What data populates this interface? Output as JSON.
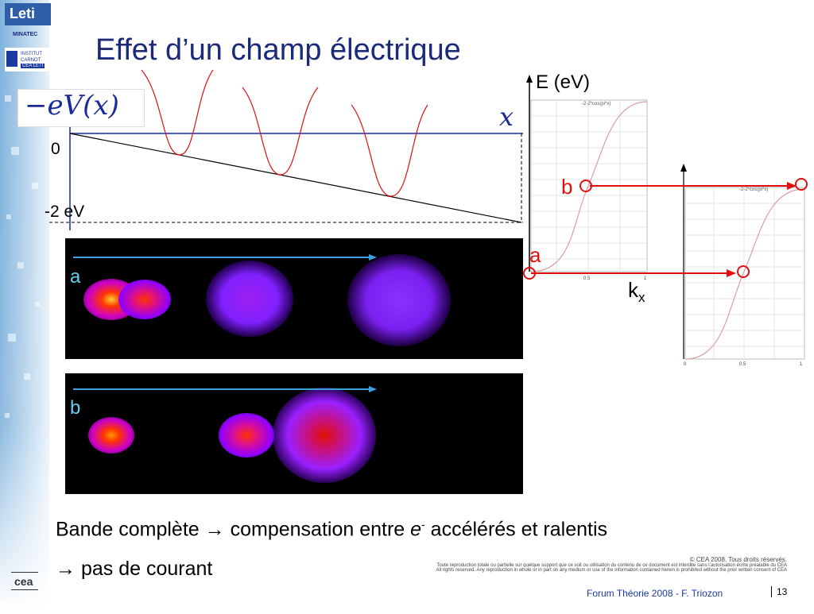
{
  "title": "Effet d’un champ électrique",
  "logos": {
    "leti": "Leti",
    "minatec": "MINATEC",
    "carnot": "INSTITUT CARNOT",
    "cea_leti": "CEA LETI",
    "cea": "cea"
  },
  "potential_plot": {
    "function_label": "−eV(x)",
    "x_label": "x",
    "tick_zero": "0",
    "tick_bottom": "-2 eV"
  },
  "band_plot": {
    "y_label": "E (eV)",
    "x_label": "k",
    "x_label_sub": "x",
    "point_a": "a",
    "point_b": "b",
    "legend_left": "-2-2*cos(pi*x)",
    "legend_right": "-2-2*cos(pi*x)",
    "tick_mid": "0.5",
    "tick_end": "1",
    "tick_zero": "0"
  },
  "panels": {
    "a_label": "a",
    "b_label": "b"
  },
  "conclusion": {
    "line1_part1": "Bande complète",
    "arrow": "→",
    "line1_part2": "compensation entre",
    "electron": "e",
    "electron_sup": "-",
    "line1_part3": "accélérés et ralentis",
    "line2": "pas de courant"
  },
  "legal": {
    "copyright": "© CEA 2008. Tous droits réservés.",
    "fr": "Toute reproduction totale ou partielle sur quelque support que ce soit ou utilisation du contenu de ce document est interdite sans l’autorisation écrite préalable du CEA",
    "en": "All rights reserved. Any reproduction in whole or in part on any medium or use of the information contained herein is prohibited without the prior written consent of CEA"
  },
  "footer": {
    "text": "Forum Théorie 2008 - F. Triozon",
    "page": "13"
  },
  "colors": {
    "title": "#1b2a7a",
    "accent_red": "#e01010",
    "label_cyan": "#5fd0f5",
    "sidebar": "#9fc3e0"
  }
}
